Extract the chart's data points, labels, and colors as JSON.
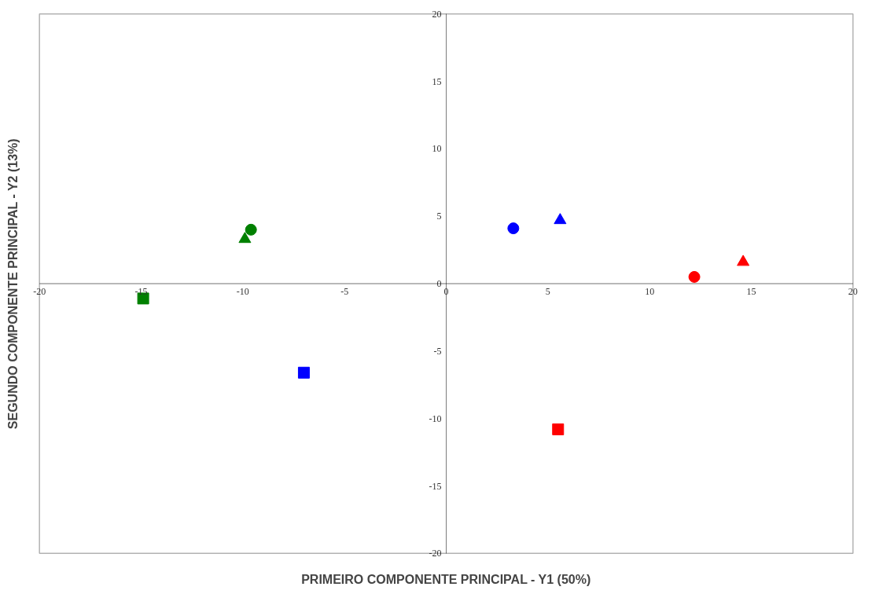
{
  "chart_data": {
    "type": "scatter",
    "xlabel": "PRIMEIRO COMPONENTE PRINCIPAL - Y1 (50%)",
    "ylabel": "SEGUNDO COMPONENTE PRINCIPAL - Y2 (13%)",
    "series": [
      {
        "marker": "circle",
        "colors": [
          "#008000",
          "#0000ff",
          "#ff0000"
        ],
        "x": [
          -9.6,
          3.3,
          12.2
        ],
        "values": [
          4.0,
          4.1,
          0.5
        ]
      },
      {
        "marker": "triangle",
        "colors": [
          "#008000",
          "#0000ff",
          "#ff0000"
        ],
        "x": [
          -9.9,
          5.6,
          14.6
        ],
        "values": [
          3.3,
          4.7,
          1.6
        ]
      },
      {
        "marker": "square",
        "colors": [
          "#008000",
          "#0000ff",
          "#ff0000"
        ],
        "x": [
          -14.9,
          -7.0,
          5.5
        ],
        "values": [
          -1.1,
          -6.6,
          -10.8
        ]
      }
    ],
    "xlim": [
      -20,
      20
    ],
    "ylim": [
      -20,
      20
    ],
    "xticks": [
      -20,
      -15,
      -10,
      -5,
      0,
      5,
      10,
      15,
      20
    ],
    "yticks": [
      -20,
      -15,
      -10,
      -5,
      0,
      5,
      10,
      15,
      20
    ],
    "grid": false
  }
}
